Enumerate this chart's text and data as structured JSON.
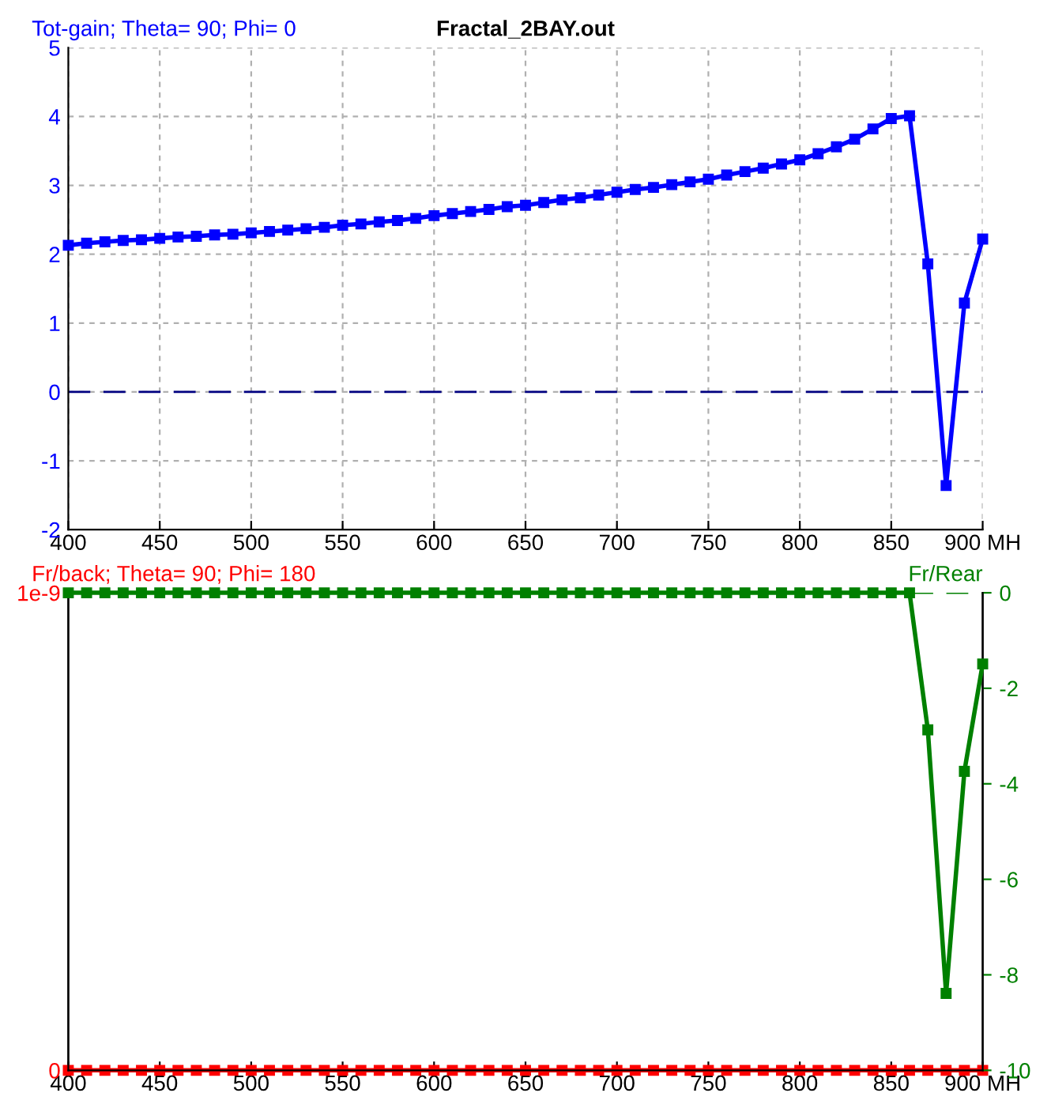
{
  "chart_data": [
    {
      "type": "line",
      "title": "Fractal_2BAY.out",
      "ylabel": "Tot-gain; Theta= 90; Phi= 0",
      "x": [
        400,
        410,
        420,
        430,
        440,
        450,
        460,
        470,
        480,
        490,
        500,
        510,
        520,
        530,
        540,
        550,
        560,
        570,
        580,
        590,
        600,
        610,
        620,
        630,
        640,
        650,
        660,
        670,
        680,
        690,
        700,
        710,
        720,
        730,
        740,
        750,
        760,
        770,
        780,
        790,
        800,
        810,
        820,
        830,
        840,
        850,
        860,
        870,
        880,
        890,
        900
      ],
      "series": [
        {
          "color": "#0000ff",
          "values": [
            2.13,
            2.16,
            2.18,
            2.2,
            2.21,
            2.23,
            2.25,
            2.26,
            2.28,
            2.29,
            2.31,
            2.33,
            2.35,
            2.37,
            2.39,
            2.42,
            2.44,
            2.47,
            2.49,
            2.52,
            2.56,
            2.59,
            2.62,
            2.65,
            2.69,
            2.71,
            2.75,
            2.79,
            2.82,
            2.86,
            2.9,
            2.94,
            2.97,
            3.01,
            3.05,
            3.09,
            3.15,
            3.2,
            3.25,
            3.31,
            3.37,
            3.46,
            3.56,
            3.67,
            3.82,
            3.97,
            4.01,
            1.86,
            -1.36,
            1.29,
            2.22
          ]
        }
      ],
      "xlim": [
        400,
        900
      ],
      "xticks": [
        400,
        450,
        500,
        550,
        600,
        650,
        700,
        750,
        800,
        850,
        {
          "value": 900,
          "label": "900 MH"
        }
      ],
      "ylim": [
        -2,
        5
      ],
      "yticks": [
        -2,
        -1,
        0,
        1,
        2,
        3,
        4,
        5
      ],
      "ref_lines": [
        {
          "axis": "y",
          "value": 0,
          "color": "#000080",
          "line_style": "dashed"
        }
      ],
      "grid": true,
      "marker": "square",
      "line_style": "solid"
    },
    {
      "type": "line",
      "ylabel": "Fr/back; Theta= 90; Phi= 180",
      "y2label": "Fr/Rear",
      "x": [
        400,
        410,
        420,
        430,
        440,
        450,
        460,
        470,
        480,
        490,
        500,
        510,
        520,
        530,
        540,
        550,
        560,
        570,
        580,
        590,
        600,
        610,
        620,
        630,
        640,
        650,
        660,
        670,
        680,
        690,
        700,
        710,
        720,
        730,
        740,
        750,
        760,
        770,
        780,
        790,
        800,
        810,
        820,
        830,
        840,
        850,
        860,
        870,
        880,
        890,
        900
      ],
      "series": [
        {
          "color": "#ff0000",
          "values": [
            0,
            0,
            0,
            0,
            0,
            0,
            0,
            0,
            0,
            0,
            0,
            0,
            0,
            0,
            0,
            0,
            0,
            0,
            0,
            0,
            0,
            0,
            0,
            0,
            0,
            0,
            0,
            0,
            0,
            0,
            0,
            0,
            0,
            0,
            0,
            0,
            0,
            0,
            0,
            0,
            0,
            0,
            0,
            0,
            0,
            0,
            0,
            0,
            0,
            0,
            0
          ]
        },
        {
          "color": "#008000",
          "axis": "y2",
          "values": [
            0,
            0,
            0,
            0,
            0,
            0,
            0,
            0,
            0,
            0,
            0,
            0,
            0,
            0,
            0,
            0,
            0,
            0,
            0,
            0,
            0,
            0,
            0,
            0,
            0,
            0,
            0,
            0,
            0,
            0,
            0,
            0,
            0,
            0,
            0,
            0,
            0,
            0,
            0,
            0,
            0,
            0,
            0,
            0,
            0,
            0,
            0,
            -2.87,
            -8.39,
            -3.74,
            -1.49
          ]
        }
      ],
      "xlim": [
        400,
        900
      ],
      "xticks": [
        400,
        450,
        500,
        550,
        600,
        650,
        700,
        750,
        800,
        850,
        {
          "value": 900,
          "label": "900 MH"
        }
      ],
      "ylim": [
        0,
        1e-09
      ],
      "yticks": [
        0,
        {
          "value": 1e-09,
          "label": "1e-9"
        }
      ],
      "y2lim": [
        -10,
        0
      ],
      "y2ticks": [
        -10,
        -8,
        -6,
        -4,
        -2,
        0
      ],
      "ref_lines": [
        {
          "axis": "y2",
          "value": 0,
          "color": "#008000",
          "line_style": "dashed"
        }
      ],
      "grid": false,
      "marker": "square",
      "line_style": "solid"
    }
  ]
}
